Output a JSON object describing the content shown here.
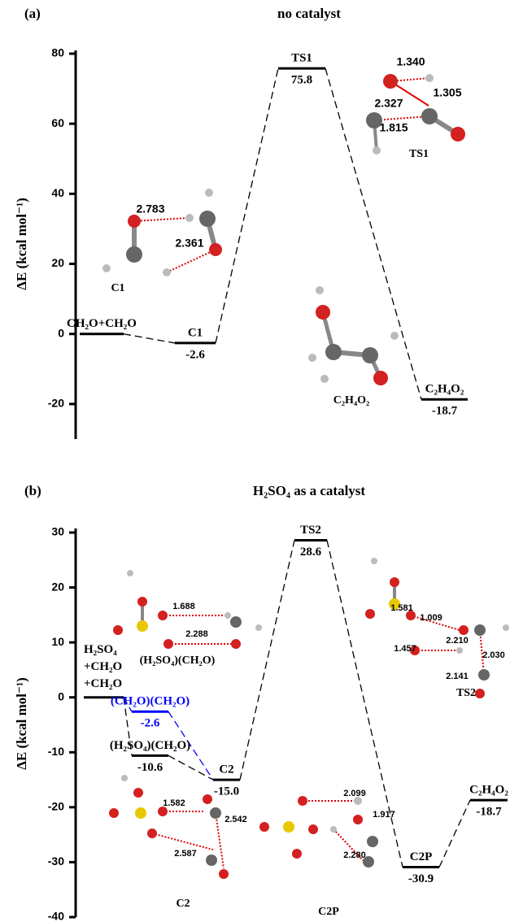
{
  "chart_data": [
    {
      "type": "energy-profile",
      "panel_label": "(a)",
      "title": "no catalyst",
      "ylabel": "ΔE (kcal mol⁻¹)",
      "ylim": [
        -30,
        80
      ],
      "yticks": [
        -20,
        0,
        20,
        40,
        60,
        80
      ],
      "levels": [
        {
          "label": "CH₂O+CH₂O",
          "value": 0,
          "color": "#000000"
        },
        {
          "label": "C1",
          "value": -2.6,
          "value_label": "-2.6",
          "color": "#000000"
        },
        {
          "label": "TS1",
          "value": 75.8,
          "value_label": "75.8",
          "color": "#000000"
        },
        {
          "label": "C₂H₄O₂",
          "value": -18.7,
          "value_label": "-18.7",
          "color": "#000000"
        }
      ],
      "annotations": [
        "2.783",
        "2.361",
        "C1",
        "1.340",
        "1.305",
        "2.327",
        "1.815",
        "TS1",
        "C₂H₄O₂"
      ]
    },
    {
      "type": "energy-profile",
      "panel_label": "(b)",
      "title": "H₂SO₄ as a catalyst",
      "ylabel": "ΔE (kcal mol⁻¹)",
      "ylim": [
        -40,
        30
      ],
      "yticks": [
        -40,
        -30,
        -20,
        -10,
        0,
        10,
        20,
        30
      ],
      "levels": [
        {
          "label": [
            "H₂SO₄",
            "+CH₂O",
            "+CH₂O"
          ],
          "value": 0,
          "color": "#000000"
        },
        {
          "label": "(CH₂O)(CH₂O)",
          "value": -2.6,
          "value_label": "-2.6",
          "color": "#0000ff"
        },
        {
          "label": "(H₂SO₄)(CH₂O)",
          "value": -10.6,
          "value_label": "-10.6",
          "color": "#000000"
        },
        {
          "label": "C2",
          "value": -15.0,
          "value_label": "-15.0",
          "color": "#000000"
        },
        {
          "label": "TS2",
          "value": 28.6,
          "value_label": "28.6",
          "color": "#000000"
        },
        {
          "label": "C2P",
          "value": -30.9,
          "value_label": "-30.9",
          "color": "#000000"
        },
        {
          "label": "C₂H₄O₂",
          "value": -18.7,
          "value_label": "-18.7",
          "color": "#000000"
        }
      ],
      "annotations": [
        "(H₂SO₄)(CH₂O)",
        "1.688",
        "2.288",
        "1.581",
        "1.009",
        "2.210",
        "1.457",
        "2.030",
        "2.141",
        "TS2",
        "1.582",
        "2.542",
        "2.587",
        "C2",
        "2.099",
        "1.917",
        "2.280",
        "C2P"
      ]
    }
  ]
}
